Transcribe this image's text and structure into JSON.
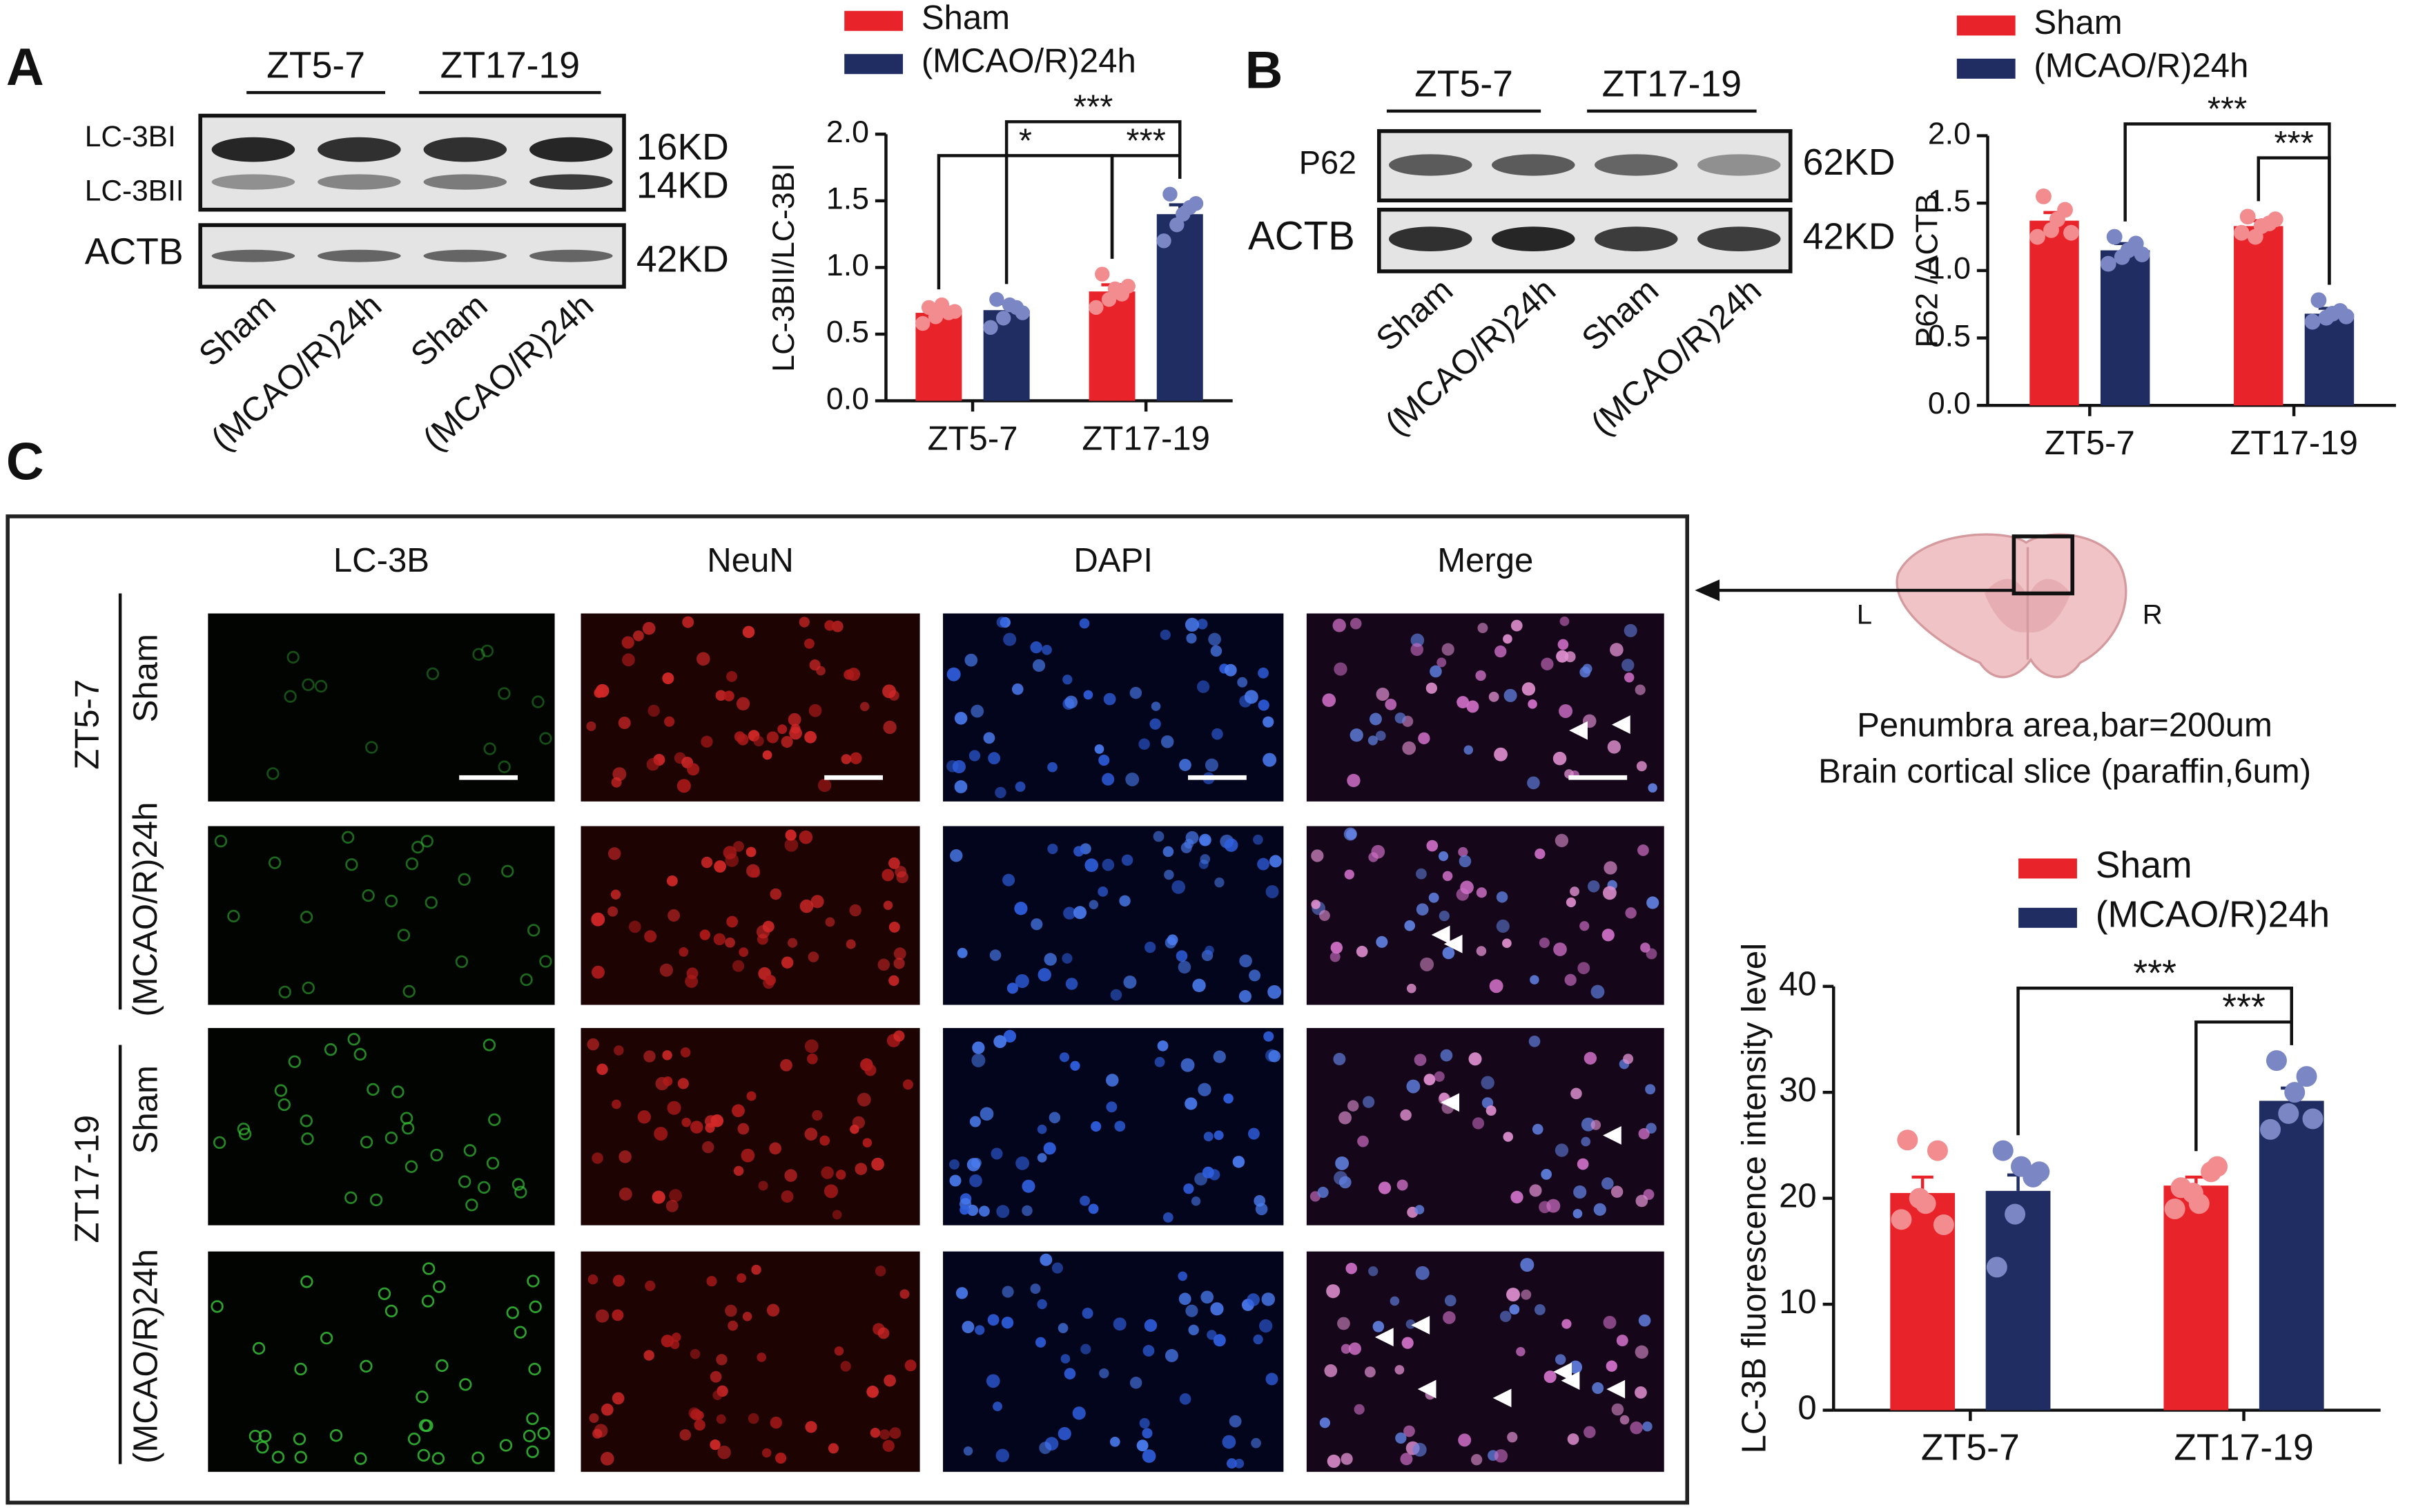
{
  "panel_labels": [
    "A",
    "B",
    "C"
  ],
  "blot_a": {
    "groups": [
      "ZT5-7",
      "ZT17-19"
    ],
    "bands": [
      "LC-3BI",
      "LC-3BII",
      "ACTB"
    ],
    "sizes": [
      "16KD",
      "14KD",
      "42KD"
    ],
    "lanes": [
      "Sham",
      "(MCAO/R)24h",
      "Sham",
      "(MCAO/R)24h"
    ]
  },
  "blot_b": {
    "groups": [
      "ZT5-7",
      "ZT17-19"
    ],
    "bands": [
      "P62",
      "ACTB"
    ],
    "sizes": [
      "62KD",
      "42KD"
    ],
    "lanes": [
      "Sham",
      "(MCAO/R)24h",
      "Sham",
      "(MCAO/R)24h"
    ]
  },
  "micrograph": {
    "columns": [
      "LC-3B",
      "NeuN",
      "DAPI",
      "Merge"
    ],
    "groups": [
      "ZT5-7",
      "ZT17-19"
    ],
    "rows": [
      "Sham",
      "(MCAO/R)24h",
      "Sham",
      "(MCAO/R)24h"
    ]
  },
  "brain": {
    "left": "L",
    "right": "R",
    "caption": [
      "Penumbra area,bar=200um",
      "Brain cortical slice (paraffin,6um)"
    ]
  },
  "chart_data": [
    {
      "type": "bar",
      "ylabel": "LC-3BII/LC-3BI",
      "categories": [
        "ZT5-7",
        "ZT17-19"
      ],
      "series": [
        {
          "name": "Sham",
          "color": "#e8242a",
          "point_color": "#f28c8f",
          "values": [
            0.66,
            0.82
          ],
          "errors": [
            0.04,
            0.05
          ],
          "points": [
            [
              0.58,
              0.63,
              0.66,
              0.7,
              0.72,
              0.67
            ],
            [
              0.7,
              0.76,
              0.8,
              0.95,
              0.84,
              0.86
            ]
          ]
        },
        {
          "name": "(MCAO/R)24h",
          "color": "#1f2d62",
          "point_color": "#7b86c4",
          "values": [
            0.68,
            1.4
          ],
          "errors": [
            0.05,
            0.07
          ],
          "points": [
            [
              0.55,
              0.62,
              0.7,
              0.76,
              0.72,
              0.66
            ],
            [
              1.2,
              1.32,
              1.45,
              1.55,
              1.4,
              1.48
            ]
          ]
        }
      ],
      "ylim": [
        0,
        2
      ],
      "yticks": [
        {
          "value": 0,
          "label": "0.0"
        },
        0.5,
        {
          "value": 1,
          "label": "1.0"
        },
        1.5,
        {
          "value": 2,
          "label": "2.0"
        }
      ],
      "comparisons": [
        {
          "label": "*",
          "from": [
            0,
            0
          ],
          "to": [
            0,
            1
          ]
        },
        {
          "label": "***",
          "from": [
            0,
            1
          ],
          "to": [
            1,
            1
          ]
        },
        {
          "label": "***",
          "from": [
            1,
            0
          ],
          "to": [
            1,
            1
          ]
        }
      ]
    },
    {
      "type": "bar",
      "ylabel": "P62 /ACTB",
      "categories": [
        "ZT5-7",
        "ZT17-19"
      ],
      "series": [
        {
          "name": "Sham",
          "color": "#e8242a",
          "point_color": "#f28c8f",
          "values": [
            1.37,
            1.33
          ],
          "errors": [
            0.06,
            0.04
          ],
          "points": [
            [
              1.25,
              1.3,
              1.45,
              1.55,
              1.38,
              1.28
            ],
            [
              1.28,
              1.25,
              1.35,
              1.4,
              1.33,
              1.38
            ]
          ]
        },
        {
          "name": "(MCAO/R)24h",
          "color": "#1f2d62",
          "point_color": "#7b86c4",
          "values": [
            1.15,
            0.68
          ],
          "errors": [
            0.05,
            0.04
          ],
          "points": [
            [
              1.05,
              1.1,
              1.2,
              1.25,
              1.15,
              1.12
            ],
            [
              0.62,
              0.65,
              0.7,
              0.78,
              0.68,
              0.66
            ]
          ]
        }
      ],
      "ylim": [
        0,
        2
      ],
      "yticks": [
        {
          "value": 0,
          "label": "0.0"
        },
        0.5,
        {
          "value": 1,
          "label": "1.0"
        },
        1.5,
        {
          "value": 2,
          "label": "2.0"
        }
      ],
      "comparisons": [
        {
          "label": "***",
          "from": [
            0,
            1
          ],
          "to": [
            1,
            1
          ]
        },
        {
          "label": "***",
          "from": [
            1,
            0
          ],
          "to": [
            1,
            1
          ]
        }
      ]
    },
    {
      "type": "bar",
      "ylabel": "LC-3B fluorescence intensity level",
      "categories": [
        "ZT5-7",
        "ZT17-19"
      ],
      "series": [
        {
          "name": "Sham",
          "color": "#e8242a",
          "point_color": "#f28c8f",
          "values": [
            20.5,
            21.2
          ],
          "errors": [
            1.5,
            0.8
          ],
          "points": [
            [
              18.0,
              20.0,
              24.5,
              25.5,
              19.5,
              17.5
            ],
            [
              19.0,
              20.5,
              22.5,
              21.0,
              19.5,
              23.0
            ]
          ]
        },
        {
          "name": "(MCAO/R)24h",
          "color": "#1f2d62",
          "point_color": "#7b86c4",
          "values": [
            20.7,
            29.2
          ],
          "errors": [
            1.5,
            1.2
          ],
          "points": [
            [
              13.5,
              18.5,
              22.0,
              24.5,
              23.0,
              22.5
            ],
            [
              26.5,
              28.0,
              31.5,
              33.0,
              30.0,
              27.5
            ]
          ]
        }
      ],
      "ylim": [
        0,
        40
      ],
      "yticks": [
        0,
        10,
        20,
        30,
        40
      ],
      "comparisons": [
        {
          "label": "***",
          "from": [
            0,
            1
          ],
          "to": [
            1,
            1
          ]
        },
        {
          "label": "***",
          "from": [
            1,
            0
          ],
          "to": [
            1,
            1
          ]
        }
      ]
    }
  ]
}
